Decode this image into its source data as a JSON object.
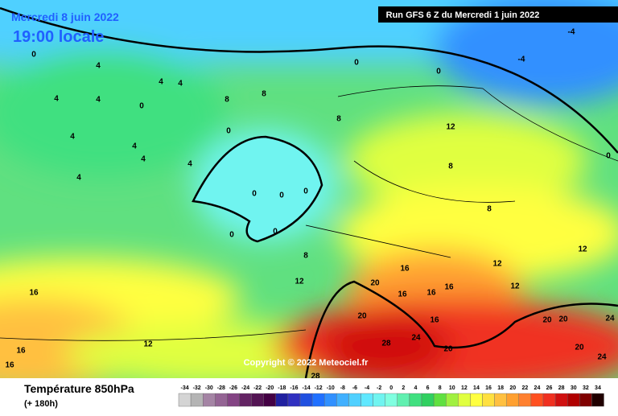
{
  "header": {
    "date": "Mercredi 8 juin 2022",
    "time": "19:00 locale",
    "run": "Run GFS 6 Z du Mercredi 1 juin 2022"
  },
  "copyright": "Copyright © 2022 Meteociel.fr",
  "legend": {
    "title": "Température 850hPa",
    "subtitle": "(+ 180h)",
    "scale": [
      -34,
      -32,
      -30,
      -28,
      -26,
      -24,
      -22,
      -20,
      -18,
      -16,
      -14,
      -12,
      -10,
      -8,
      -6,
      -4,
      -2,
      0,
      2,
      4,
      6,
      8,
      10,
      12,
      14,
      16,
      18,
      20,
      22,
      24,
      26,
      28,
      30,
      32,
      34
    ],
    "colors": [
      "#d4d4d4",
      "#b4b4b4",
      "#a484a4",
      "#946494",
      "#844484",
      "#642464",
      "#541454",
      "#440044",
      "#2020a0",
      "#3030c0",
      "#2050e0",
      "#2070ff",
      "#3090ff",
      "#40b0ff",
      "#50d0ff",
      "#60e8ff",
      "#70f4f0",
      "#80ffe0",
      "#60f0b0",
      "#40e080",
      "#30d060",
      "#60e040",
      "#a0f040",
      "#e0ff40",
      "#ffff40",
      "#ffe040",
      "#ffc040",
      "#ffa030",
      "#ff8030",
      "#ff5020",
      "#f03020",
      "#d01010",
      "#b00000",
      "#800000",
      "#200000"
    ]
  },
  "contour_labels": [
    0,
    4,
    4,
    4,
    0,
    4,
    4,
    4,
    4,
    4,
    4,
    4,
    0,
    8,
    8,
    8,
    0,
    0,
    -4,
    -4,
    12,
    8,
    8,
    0,
    0,
    0,
    0,
    0,
    8,
    12,
    16,
    16,
    16,
    16,
    16,
    20,
    20,
    28,
    24,
    20,
    28,
    12,
    12,
    12,
    20,
    20,
    24,
    20,
    24,
    12,
    16,
    16,
    16,
    0
  ]
}
